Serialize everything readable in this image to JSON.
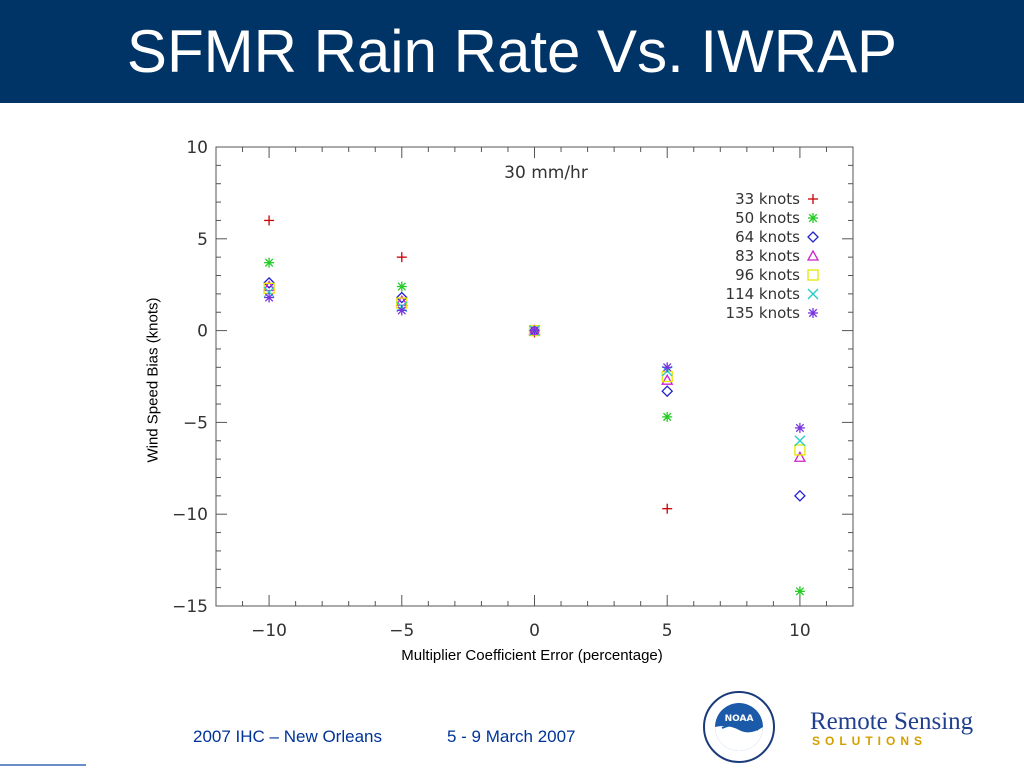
{
  "slide": {
    "title": "SFMR Rain Rate Vs. IWRAP",
    "footer_event": "2007 IHC – New Orleans",
    "footer_date": "5 - 9 March 2007",
    "logo_text_top": "Remote Sensing",
    "logo_text_bottom": "SOLUTIONS",
    "seal_text": "NOAA",
    "colors": {
      "title_bar": "#003366",
      "footer_text": "#003399"
    }
  },
  "chart_data": {
    "type": "scatter",
    "annotation": "30 mm/hr",
    "xlabel": "Multiplier Coefficient Error (percentage)",
    "ylabel": "Wind Speed  Bias (knots)",
    "xlim": [
      -12,
      12
    ],
    "ylim": [
      -15,
      10
    ],
    "x_ticks": [
      -10,
      -5,
      0,
      5,
      10
    ],
    "x_tick_labels": [
      "−10",
      "−5",
      "0",
      "5",
      "10"
    ],
    "y_ticks": [
      10,
      5,
      0,
      -5,
      -10,
      -15
    ],
    "y_tick_labels": [
      "10",
      "5",
      "0",
      "−5",
      "−10",
      "−15"
    ],
    "legend_position": "top-right",
    "x": [
      -10,
      -5,
      0,
      5,
      10
    ],
    "series": [
      {
        "name": "33  knots",
        "marker": "plus",
        "color": "#cc0000",
        "values": [
          6.0,
          4.0,
          -0.1,
          -9.7,
          null
        ]
      },
      {
        "name": "50  knots",
        "marker": "asterisk",
        "color": "#22cc22",
        "values": [
          3.7,
          2.4,
          0.0,
          -4.7,
          -14.2
        ]
      },
      {
        "name": "64  knots",
        "marker": "diamond",
        "color": "#2222cc",
        "values": [
          2.6,
          1.8,
          0.0,
          -3.3,
          -9.0
        ]
      },
      {
        "name": "83  knots",
        "marker": "triangle",
        "color": "#cc22cc",
        "values": [
          2.4,
          1.6,
          0.0,
          -2.7,
          -6.9
        ]
      },
      {
        "name": "96  knots",
        "marker": "square",
        "color": "#e6e600",
        "values": [
          2.3,
          1.5,
          0.0,
          -2.5,
          -6.5
        ]
      },
      {
        "name": "114  knots",
        "marker": "cross",
        "color": "#22cccc",
        "values": [
          2.1,
          1.3,
          0.0,
          -2.2,
          -6.0
        ]
      },
      {
        "name": "135  knots",
        "marker": "asterisk",
        "color": "#7733dd",
        "values": [
          1.8,
          1.1,
          0.0,
          -2.0,
          -5.3
        ]
      }
    ]
  }
}
